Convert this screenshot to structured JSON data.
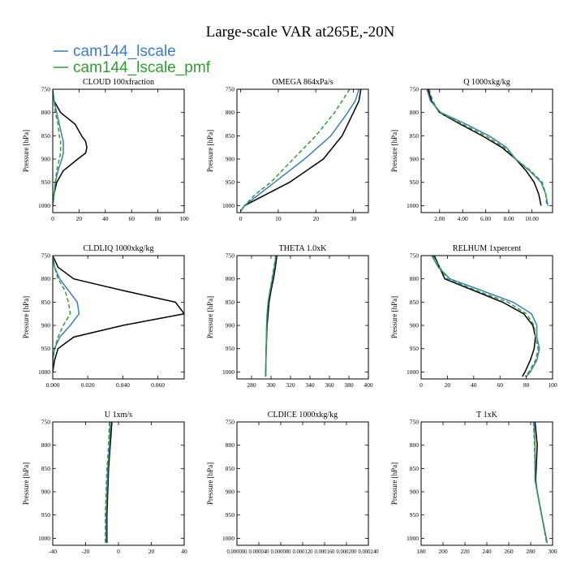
{
  "figure": {
    "title": "Large-scale VAR at265E,-20N",
    "legend": [
      {
        "label": "cam144_lscale",
        "color": "#3a7ebf"
      },
      {
        "label": "cam144_lscale_pmf",
        "color": "#2ca02c"
      }
    ]
  },
  "series_styles": [
    {
      "color": "#000000",
      "dash": ""
    },
    {
      "color": "#3a7ebf",
      "dash": ""
    },
    {
      "color": "#2ca02c",
      "dash": "5,3"
    }
  ],
  "chart_data": [
    {
      "type": "line",
      "title": "CLOUD  100xfraction",
      "ylabel": "Pressure [hPa]",
      "xlim": [
        0,
        100
      ],
      "ylim": [
        1015,
        750
      ],
      "xticks": [
        0,
        20,
        40,
        60,
        80,
        100
      ],
      "xtick_labels": [
        "0",
        "20",
        "40",
        "60",
        "80",
        "100"
      ],
      "yticks": [
        750,
        800,
        850,
        900,
        950,
        1000
      ],
      "ytick_labels": [
        "750",
        "800",
        "850",
        "900",
        "950",
        "1000"
      ],
      "y": [
        750,
        775,
        800,
        825,
        850,
        862,
        875,
        887,
        900,
        925,
        950,
        975,
        1000
      ],
      "series": [
        {
          "values": [
            0,
            1,
            6,
            17,
            22,
            25,
            26,
            25,
            19,
            8,
            3,
            1,
            0
          ]
        },
        {
          "values": [
            0,
            1,
            3,
            5,
            7,
            8,
            8,
            8,
            7,
            4,
            2,
            1,
            0
          ]
        },
        {
          "values": [
            0,
            1,
            2,
            4,
            5,
            6,
            6,
            6,
            5,
            3,
            2,
            1,
            0
          ]
        }
      ]
    },
    {
      "type": "line",
      "title": "OMEGA  864xPa/s",
      "ylabel": "Pressure [hPa]",
      "xlim": [
        -1,
        34
      ],
      "ylim": [
        1015,
        750
      ],
      "xticks": [
        0,
        10,
        20,
        30
      ],
      "xtick_labels": [
        "0",
        "10",
        "20",
        "30"
      ],
      "yticks": [
        750,
        800,
        850,
        900,
        950,
        1000
      ],
      "ytick_labels": [
        "750",
        "800",
        "850",
        "900",
        "950",
        "1000"
      ],
      "y": [
        750,
        775,
        800,
        850,
        900,
        950,
        975,
        1000,
        1012
      ],
      "series": [
        {
          "values": [
            32,
            31.5,
            30,
            27,
            22,
            13,
            7,
            1,
            0
          ]
        },
        {
          "values": [
            31.5,
            30.5,
            28.5,
            24,
            17,
            9,
            5,
            1,
            0
          ]
        },
        {
          "values": [
            29,
            27,
            25,
            20,
            14,
            8,
            4,
            1,
            0
          ]
        }
      ]
    },
    {
      "type": "line",
      "title": "Q  1000xkg/kg",
      "ylabel": "Pressure [hPa]",
      "xlim": [
        0.4,
        11.8
      ],
      "ylim": [
        1015,
        750
      ],
      "xticks": [
        2,
        4,
        6,
        8,
        10
      ],
      "xtick_labels": [
        "2.00",
        "4.00",
        "6.00",
        "8.00",
        "10.00"
      ],
      "yticks": [
        750,
        800,
        850,
        900,
        950,
        1000
      ],
      "ytick_labels": [
        "750",
        "800",
        "850",
        "900",
        "950",
        "1000"
      ],
      "y": [
        750,
        775,
        800,
        825,
        850,
        875,
        900,
        925,
        950,
        975,
        1000
      ],
      "series": [
        {
          "values": [
            1.0,
            1.3,
            2.0,
            3.8,
            5.7,
            7.4,
            8.6,
            9.5,
            10.2,
            10.6,
            10.8
          ]
        },
        {
          "values": [
            0.9,
            1.2,
            2.1,
            4.3,
            6.3,
            7.8,
            8.6,
            9.8,
            10.8,
            11.2,
            11.4
          ]
        },
        {
          "values": [
            1.1,
            1.4,
            2.0,
            4.0,
            6.0,
            7.6,
            8.6,
            9.9,
            10.9,
            11.2,
            11.3
          ]
        }
      ]
    },
    {
      "type": "line",
      "title": "CLDLIQ  1000xkg/kg",
      "ylabel": "Pressure [hPa]",
      "xlim": [
        0,
        0.075
      ],
      "ylim": [
        1015,
        750
      ],
      "xticks": [
        0,
        0.02,
        0.04,
        0.06
      ],
      "xtick_labels": [
        "0.000",
        "0.020",
        "0.040",
        "0.060"
      ],
      "yticks": [
        750,
        800,
        850,
        900,
        950,
        1000
      ],
      "ytick_labels": [
        "750",
        "800",
        "850",
        "900",
        "950",
        "1000"
      ],
      "y": [
        750,
        775,
        800,
        825,
        850,
        875,
        900,
        925,
        950,
        975,
        1000
      ],
      "series": [
        {
          "values": [
            0,
            0.003,
            0.012,
            0.04,
            0.07,
            0.075,
            0.04,
            0.012,
            0.003,
            0.001,
            0
          ]
        },
        {
          "values": [
            0,
            0.001,
            0.004,
            0.009,
            0.014,
            0.015,
            0.01,
            0.004,
            0.001,
            0,
            0
          ]
        },
        {
          "values": [
            0,
            0.001,
            0.003,
            0.007,
            0.009,
            0.01,
            0.006,
            0.003,
            0.001,
            0,
            0
          ]
        }
      ]
    },
    {
      "type": "line",
      "title": "THETA  1.0xK",
      "ylabel": "Pressure [hPa]",
      "xlim": [
        265,
        400
      ],
      "ylim": [
        1015,
        750
      ],
      "xticks": [
        280,
        300,
        320,
        340,
        360,
        380,
        400
      ],
      "xtick_labels": [
        "280",
        "300",
        "320",
        "340",
        "360",
        "380",
        "400"
      ],
      "yticks": [
        750,
        800,
        850,
        900,
        950,
        1000
      ],
      "ytick_labels": [
        "750",
        "800",
        "850",
        "900",
        "950",
        "1000"
      ],
      "y": [
        750,
        775,
        800,
        825,
        850,
        875,
        900,
        950,
        1010
      ],
      "series": [
        {
          "values": [
            306,
            304.5,
            302.5,
            300,
            298,
            297,
            296,
            295,
            294.5
          ]
        },
        {
          "values": [
            305,
            303.5,
            301.5,
            299,
            297,
            296,
            295.5,
            295,
            294.5
          ]
        },
        {
          "values": [
            305,
            303,
            301,
            299,
            297,
            296,
            295.5,
            295,
            294.5
          ]
        }
      ]
    },
    {
      "type": "line",
      "title": "RELHUM  1xpercent",
      "ylabel": "Pressure [hPa]",
      "xlim": [
        0,
        100
      ],
      "ylim": [
        1015,
        750
      ],
      "xticks": [
        0,
        20,
        40,
        60,
        80,
        100
      ],
      "xtick_labels": [
        "0",
        "20",
        "40",
        "60",
        "80",
        "100"
      ],
      "yticks": [
        750,
        800,
        850,
        900,
        950,
        1000
      ],
      "ytick_labels": [
        "750",
        "800",
        "850",
        "900",
        "950",
        "1000"
      ],
      "y": [
        750,
        775,
        800,
        825,
        850,
        875,
        900,
        925,
        950,
        975,
        1000,
        1010
      ],
      "series": [
        {
          "values": [
            10,
            14,
            18,
            40,
            62,
            78,
            85,
            87,
            86,
            83,
            79,
            77
          ]
        },
        {
          "values": [
            8,
            13,
            22,
            46,
            70,
            84,
            88,
            88,
            90,
            88,
            83,
            80
          ]
        },
        {
          "values": [
            9,
            14,
            20,
            42,
            66,
            80,
            86,
            87,
            89,
            87,
            82,
            79
          ]
        }
      ]
    },
    {
      "type": "line",
      "title": "U  1xm/s",
      "ylabel": "Pressure [hPa]",
      "xlim": [
        -40,
        40
      ],
      "ylim": [
        1015,
        750
      ],
      "xticks": [
        -40,
        -20,
        0,
        20,
        40
      ],
      "xtick_labels": [
        "-40",
        "-20",
        "0",
        "20",
        "40"
      ],
      "yticks": [
        750,
        800,
        850,
        900,
        950,
        1000
      ],
      "ytick_labels": [
        "750",
        "800",
        "850",
        "900",
        "950",
        "1000"
      ],
      "y": [
        750,
        800,
        850,
        900,
        950,
        1010
      ],
      "series": [
        {
          "values": [
            -4,
            -5,
            -6,
            -6.5,
            -7,
            -7
          ]
        },
        {
          "values": [
            -5,
            -5.5,
            -6.5,
            -7,
            -7.5,
            -7.5
          ]
        },
        {
          "values": [
            -5.5,
            -6,
            -7,
            -7.5,
            -8,
            -8
          ]
        }
      ]
    },
    {
      "type": "line",
      "title": "CLDICE  1000xkg/kg",
      "ylabel": "Pressure [hPa]",
      "xlim": [
        0,
        0.00024
      ],
      "ylim": [
        1015,
        750
      ],
      "xticks": [
        0,
        4e-05,
        8e-05,
        0.00012,
        0.00016,
        0.0002,
        0.00024
      ],
      "xtick_labels": [
        "0.000000",
        "0.000040",
        "0.000080",
        "0.000120",
        "0.000160",
        "0.000200",
        "0.000240"
      ],
      "yticks": [
        750,
        800,
        850,
        900,
        950,
        1000
      ],
      "ytick_labels": [
        "750",
        "800",
        "850",
        "900",
        "950",
        "1000"
      ],
      "y": [],
      "series": []
    },
    {
      "type": "line",
      "title": "T  1xK",
      "ylabel": "Pressure [hPa]",
      "xlim": [
        180,
        300
      ],
      "ylim": [
        1015,
        750
      ],
      "xticks": [
        180,
        200,
        220,
        240,
        260,
        280,
        300
      ],
      "xtick_labels": [
        "180",
        "200",
        "220",
        "240",
        "260",
        "280",
        "300"
      ],
      "yticks": [
        750,
        800,
        850,
        900,
        950,
        1000
      ],
      "ytick_labels": [
        "750",
        "800",
        "850",
        "900",
        "950",
        "1000"
      ],
      "y": [
        750,
        800,
        850,
        875,
        900,
        950,
        1010
      ],
      "series": [
        {
          "values": [
            284,
            286,
            285,
            284.5,
            286,
            290,
            295
          ]
        },
        {
          "values": [
            283,
            284,
            284,
            284,
            286,
            290,
            295
          ]
        },
        {
          "values": [
            282.5,
            283.5,
            284,
            284,
            286,
            290,
            294.5
          ]
        }
      ]
    }
  ]
}
